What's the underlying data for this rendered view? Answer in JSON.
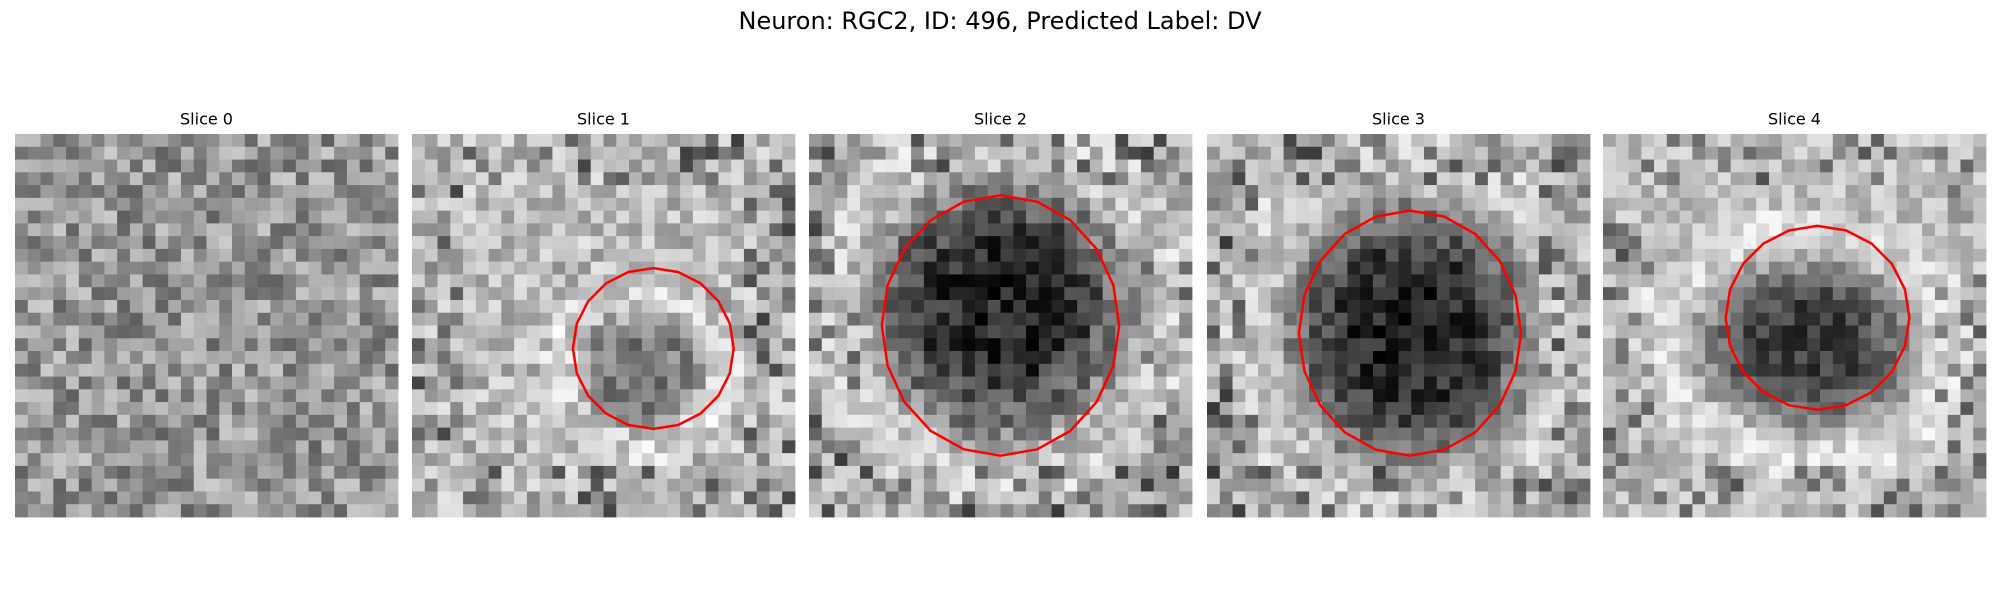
{
  "title": "Neuron: RGC2, ID: 496, Predicted Label: DV",
  "panels": [
    {
      "title": "Slice 0"
    },
    {
      "title": "Slice 1"
    },
    {
      "title": "Slice 2"
    },
    {
      "title": "Slice 3"
    },
    {
      "title": "Slice 4"
    }
  ]
}
